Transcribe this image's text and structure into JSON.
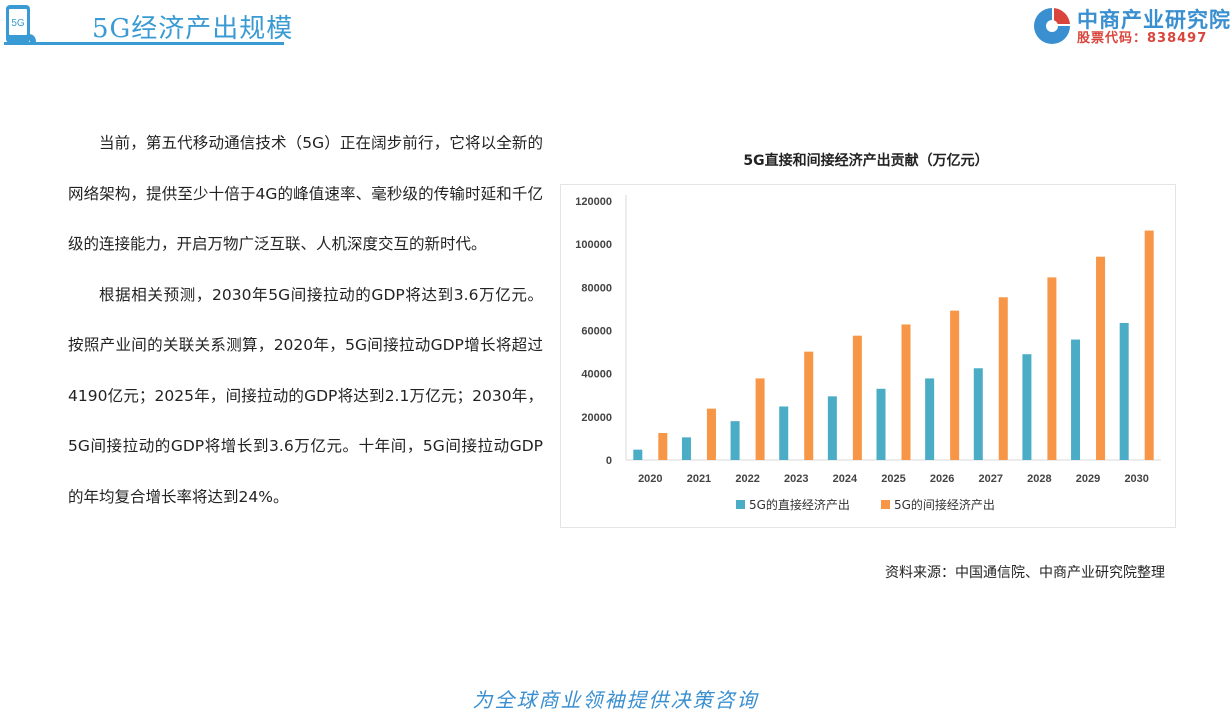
{
  "header": {
    "logo_text": "5G",
    "title": "5G经济产出规模",
    "brand_name": "中商产业研究院",
    "brand_code": "股票代码：838497"
  },
  "article": {
    "paragraphs": [
      "当前，第五代移动通信技术（5G）正在阔步前行，它将以全新的网络架构，提供至少十倍于4G的峰值速率、毫秒级的传输时延和千亿级的连接能力，开启万物广泛互联、人机深度交互的新时代。",
      "根据相关预测，2030年5G间接拉动的GDP将达到3.6万亿元。按照产业间的关联关系测算，2020年，5G间接拉动GDP增长将超过4190亿元；2025年，间接拉动的GDP将达到2.1万亿元；2030年，5G间接拉动的GDP将增长到3.6万亿元。十年间，5G间接拉动GDP的年均复合增长率将达到24%。"
    ]
  },
  "chart_data": {
    "type": "bar",
    "title": "5G直接和间接经济产出贡献（万亿元）",
    "categories": [
      "2020",
      "2021",
      "2022",
      "2023",
      "2024",
      "2025",
      "2026",
      "2027",
      "2028",
      "2029",
      "2030"
    ],
    "series": [
      {
        "name": "5G的直接经济产出",
        "color": "#4bacc6",
        "values": [
          4800,
          10500,
          18000,
          24800,
          29500,
          33000,
          37800,
          42500,
          49000,
          55800,
          63500
        ]
      },
      {
        "name": "5G的间接经济产出",
        "color": "#f79646",
        "values": [
          12500,
          23800,
          37800,
          50200,
          57600,
          62800,
          69200,
          75400,
          84600,
          94200,
          106300
        ]
      }
    ],
    "yticks": [
      0,
      20000,
      40000,
      60000,
      80000,
      100000,
      120000
    ],
    "ylim": [
      0,
      120000
    ],
    "grid": false,
    "legend_position": "bottom"
  },
  "source": "资料来源：中国通信院、中商产业研究院整理",
  "footer": "为全球商业领袖提供决策咨询",
  "colors": {
    "accent": "#3a9bd4",
    "brand_red": "#d9453c",
    "direct": "#4bacc6",
    "indirect": "#f79646"
  }
}
